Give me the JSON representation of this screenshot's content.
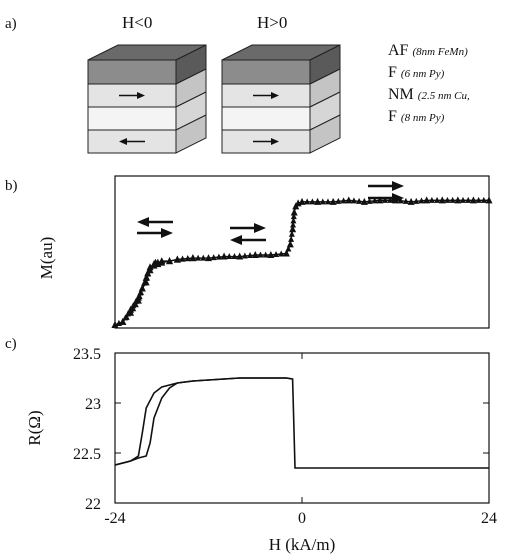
{
  "panel_a": {
    "label": "a)",
    "stack_left_title": "H<0",
    "stack_right_title": "H>0",
    "layers": [
      {
        "name": "AF",
        "detail": "(8nm FeMn)"
      },
      {
        "name": "F",
        "detail": "(6 nm Py)"
      },
      {
        "name": "NM",
        "detail": "(2.5 nm Cu,"
      },
      {
        "name": "F",
        "detail": "(8 nm Py)"
      }
    ],
    "colors": {
      "af_top": "#6a6a6a",
      "af_front": "#8c8c8c",
      "af_side": "#5a5a5a",
      "f_front": "#e4e4e4",
      "f_side": "#c4c4c4",
      "nm_front": "#f4f4f4",
      "nm_side": "#d6d6d6"
    },
    "left_arrows": [
      "right",
      "left"
    ],
    "right_arrows": [
      "right",
      "right"
    ]
  },
  "chart_data": [
    {
      "panel_label": "b)",
      "type": "scatter",
      "ylabel": "M(au)",
      "xlim": [
        -24,
        24
      ],
      "ylim": [
        0,
        1
      ],
      "marker": "triangle",
      "branches": [
        {
          "x": [
            -24,
            -23,
            -22,
            -21,
            -20.5,
            -20,
            -19.5,
            -19,
            -18.8,
            -18.5,
            -18,
            -17,
            -16,
            -14,
            -12,
            -10,
            -8,
            -6,
            -4,
            -2,
            -1.5,
            -1.2,
            -1,
            -0.8,
            -0.5,
            0,
            2,
            4,
            6,
            8,
            10,
            12,
            14,
            16,
            18,
            20,
            22,
            24
          ],
          "y": [
            0.02,
            0.04,
            0.1,
            0.18,
            0.26,
            0.33,
            0.38,
            0.41,
            0.43,
            0.42,
            0.43,
            0.44,
            0.45,
            0.46,
            0.46,
            0.47,
            0.47,
            0.48,
            0.48,
            0.49,
            0.55,
            0.65,
            0.76,
            0.8,
            0.82,
            0.83,
            0.83,
            0.83,
            0.84,
            0.83,
            0.84,
            0.84,
            0.83,
            0.84,
            0.84,
            0.84,
            0.84,
            0.84
          ]
        },
        {
          "x": [
            -24,
            -23,
            -22,
            -21,
            -20.5,
            -20,
            -19.8,
            -19.5,
            -19,
            -18.5,
            -18,
            -17,
            -16,
            -14
          ],
          "y": [
            0.02,
            0.04,
            0.12,
            0.2,
            0.26,
            0.3,
            0.36,
            0.4,
            0.42,
            0.43,
            0.44,
            0.44,
            0.45,
            0.46
          ]
        }
      ],
      "annotations": [
        {
          "text": "left-left arrows",
          "arrows": [
            "left",
            "right"
          ]
        },
        {
          "text": "right-left arrows",
          "arrows": [
            "right",
            "left"
          ]
        },
        {
          "text": "right-right arrows",
          "arrows": [
            "right",
            "right"
          ]
        }
      ]
    },
    {
      "panel_label": "c)",
      "type": "line",
      "xlabel": "H (kA/m)",
      "ylabel": "R(Ω)",
      "xlim": [
        -24,
        24
      ],
      "ylim": [
        22,
        23.5
      ],
      "xticks": [
        "-24",
        "0",
        "24"
      ],
      "yticks": [
        "22",
        "22.5",
        "23",
        "23.5"
      ],
      "series": [
        {
          "x": [
            -24,
            -22,
            -21,
            -20.5,
            -20,
            -19,
            -18,
            -16,
            -14,
            -12,
            -10,
            -8,
            -6,
            -4,
            -2,
            -1.2,
            -1.0,
            -0.9,
            0,
            4,
            8,
            12,
            16,
            20,
            24
          ],
          "y": [
            22.38,
            22.42,
            22.47,
            22.7,
            22.95,
            23.1,
            23.16,
            23.2,
            23.22,
            23.23,
            23.24,
            23.25,
            23.25,
            23.25,
            23.25,
            23.24,
            22.65,
            22.35,
            22.35,
            22.35,
            22.35,
            22.35,
            22.35,
            22.35,
            22.35
          ]
        },
        {
          "x": [
            -24,
            -22,
            -21,
            -20,
            -19.5,
            -19,
            -18,
            -17,
            -16,
            -14,
            -12,
            -10,
            -8,
            -6,
            -4,
            -2,
            -1.2
          ],
          "y": [
            22.38,
            22.42,
            22.45,
            22.47,
            22.6,
            22.85,
            23.05,
            23.15,
            23.2,
            23.22,
            23.23,
            23.24,
            23.25,
            23.25,
            23.25,
            23.25,
            23.24
          ]
        }
      ]
    }
  ]
}
